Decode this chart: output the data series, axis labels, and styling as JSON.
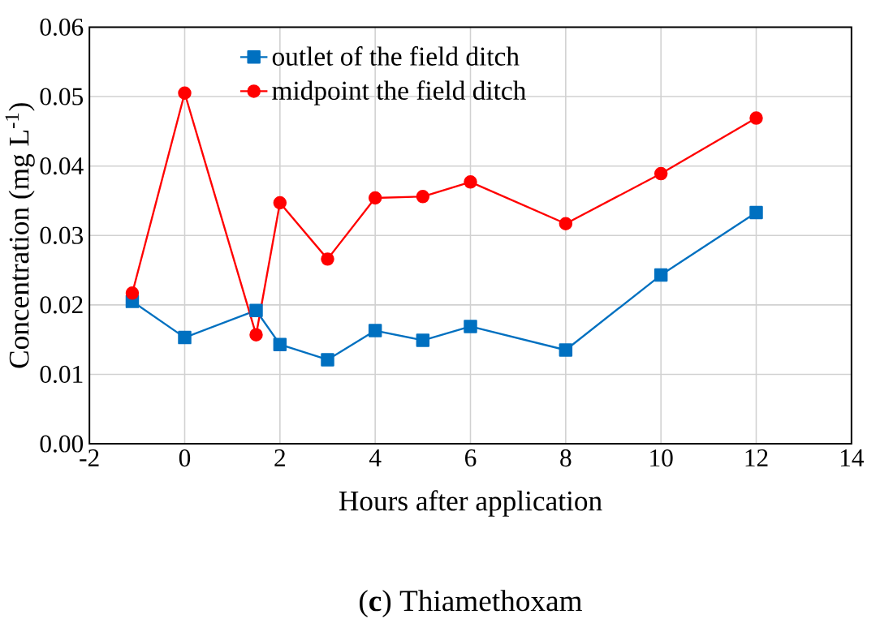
{
  "chart_data": {
    "type": "line",
    "title": "(**c**) Thiamethoxam",
    "xlabel": "Hours after application",
    "ylabel": "Concentration (mg L$^{-1}$)",
    "xlim": [
      -2,
      14
    ],
    "xticks": [
      -2,
      0,
      2,
      4,
      6,
      8,
      10,
      12,
      14
    ],
    "ylim": [
      0,
      0.06
    ],
    "yticks": [
      {
        "value": 0,
        "label": "0.00"
      },
      {
        "value": 0.01,
        "label": "0.01"
      },
      {
        "value": 0.02,
        "label": "0.02"
      },
      {
        "value": 0.03,
        "label": "0.03"
      },
      {
        "value": 0.04,
        "label": "0.04"
      },
      {
        "value": 0.05,
        "label": "0.05"
      },
      {
        "value": 0.06,
        "label": "0.06"
      }
    ],
    "x": [
      -1.1,
      0,
      1.5,
      2,
      3,
      4,
      5,
      6,
      8,
      10,
      12
    ],
    "series": [
      {
        "name": "outlet of the field ditch",
        "color": "#0070c0",
        "marker": "square",
        "values": [
          0.0205,
          0.0153,
          0.0192,
          0.0143,
          0.0121,
          0.0163,
          0.0149,
          0.0169,
          0.0135,
          0.0243,
          0.0333
        ]
      },
      {
        "name": "midpoint the field ditch",
        "color": "#ff0000",
        "marker": "circle",
        "values": [
          0.0217,
          0.0505,
          0.0157,
          0.0347,
          0.0266,
          0.0354,
          0.0356,
          0.0377,
          0.0317,
          0.0389,
          0.0469
        ]
      }
    ],
    "grid": true,
    "legend": "top",
    "line_style": "solid"
  }
}
